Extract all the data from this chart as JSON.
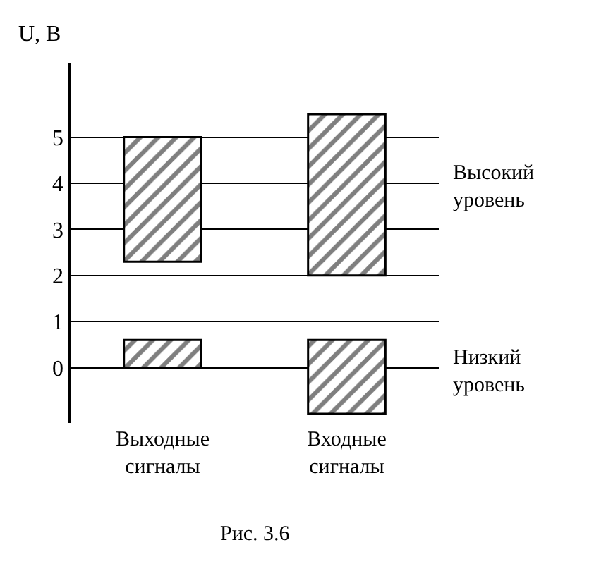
{
  "chart_data": {
    "type": "bar",
    "ylabel": "U, В",
    "categories": [
      "Выходные\nсигналы",
      "Входные\nсигналы"
    ],
    "series": [
      {
        "color": "#000000",
        "values": [
          2.7,
          3.5
        ],
        "base": [
          2.3,
          2.0
        ]
      },
      {
        "color": "#000000",
        "values": [
          0.6,
          1.6
        ],
        "base": [
          0,
          -1.0
        ]
      }
    ],
    "ylim": [
      -1.2,
      6.6
    ],
    "yticks": [
      0,
      1,
      2,
      3,
      4,
      5
    ],
    "grid": "y",
    "annotations": [
      "Высокий\nуровень",
      "Низкий\nуровень",
      "Рис. 3.6"
    ]
  }
}
